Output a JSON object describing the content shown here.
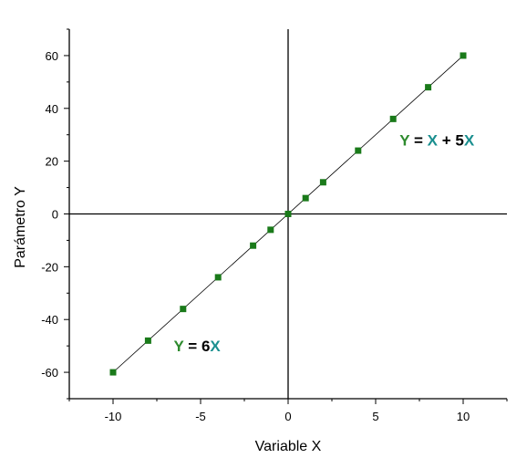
{
  "chart_data": {
    "type": "scatter",
    "xlabel": "Variable X",
    "ylabel": "Parámetro Y",
    "xlim": [
      -12.5,
      12.5
    ],
    "ylim": [
      -70,
      70
    ],
    "x_ticks": [
      -10,
      -5,
      0,
      5,
      10
    ],
    "y_ticks": [
      -60,
      -40,
      -20,
      0,
      20,
      40,
      60
    ],
    "x_tick_labels": [
      "-10",
      "-5",
      "0",
      "5",
      "10"
    ],
    "y_tick_labels": [
      "-60",
      "-40",
      "-20",
      "0",
      "20",
      "40",
      "60"
    ],
    "series": [
      {
        "x": [
          -10,
          -8,
          -6,
          -4,
          -2,
          -1,
          0,
          1,
          2,
          4,
          6,
          8,
          10
        ],
        "y": [
          -60,
          -48,
          -36,
          -24,
          -12,
          -6,
          0,
          6,
          12,
          24,
          36,
          48,
          60
        ],
        "marker": "square",
        "marker_color": "#1a7a1a",
        "line": "linear fit"
      }
    ],
    "annotations": [
      {
        "id": "upper",
        "at": [
          8.5,
          28
        ],
        "parts": [
          {
            "text": "Y",
            "color": "#2e8b2e"
          },
          {
            "text": " = ",
            "color": "#000000"
          },
          {
            "text": "X",
            "color": "#1a8f8f"
          },
          {
            "text": " + 5",
            "color": "#000000"
          },
          {
            "text": "X",
            "color": "#1a8f8f"
          }
        ]
      },
      {
        "id": "lower",
        "at": [
          -5.2,
          -50
        ],
        "parts": [
          {
            "text": "Y",
            "color": "#2e8b2e"
          },
          {
            "text": " = 6",
            "color": "#000000"
          },
          {
            "text": "X",
            "color": "#1a8f8f"
          }
        ]
      }
    ],
    "grid": false,
    "zero_lines": true
  }
}
